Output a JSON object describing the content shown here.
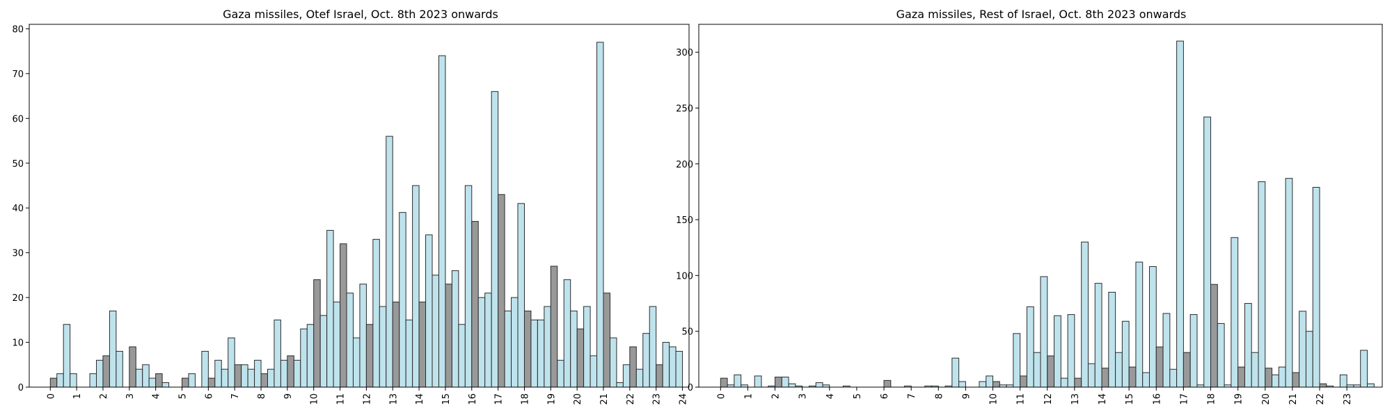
{
  "colors": {
    "light": "#bfe3ec",
    "dark": "#999999",
    "edge": "#2a2a2a"
  },
  "chart_data": [
    {
      "type": "bar",
      "title": "Gaza missiles, Otef Israel, Oct. 8th 2023 onwards",
      "xlabel": "",
      "ylabel": "",
      "x_ticks": [
        "0",
        "1",
        "2",
        "3",
        "4",
        "5",
        "6",
        "7",
        "8",
        "9",
        "10",
        "11",
        "12",
        "13",
        "14",
        "15",
        "16",
        "17",
        "18",
        "19",
        "20",
        "21",
        "22",
        "23",
        "24"
      ],
      "ylim": [
        0,
        81
      ],
      "y_ticks": [
        0,
        10,
        20,
        30,
        40,
        50,
        60,
        70,
        80
      ],
      "xlim": [
        -0.8,
        24.25
      ],
      "bin_width": 0.25,
      "bins": [
        {
          "x": 0.125,
          "v": 2,
          "c": "dark"
        },
        {
          "x": 0.375,
          "v": 3,
          "c": "light"
        },
        {
          "x": 0.625,
          "v": 14,
          "c": "light"
        },
        {
          "x": 0.875,
          "v": 3,
          "c": "light"
        },
        {
          "x": 1.125,
          "v": 0,
          "c": "light"
        },
        {
          "x": 1.375,
          "v": 0,
          "c": "light"
        },
        {
          "x": 1.625,
          "v": 3,
          "c": "light"
        },
        {
          "x": 1.875,
          "v": 6,
          "c": "light"
        },
        {
          "x": 2.125,
          "v": 7,
          "c": "dark"
        },
        {
          "x": 2.375,
          "v": 17,
          "c": "light"
        },
        {
          "x": 2.625,
          "v": 8,
          "c": "light"
        },
        {
          "x": 2.875,
          "v": 0,
          "c": "light"
        },
        {
          "x": 3.125,
          "v": 9,
          "c": "dark"
        },
        {
          "x": 3.375,
          "v": 4,
          "c": "light"
        },
        {
          "x": 3.625,
          "v": 5,
          "c": "light"
        },
        {
          "x": 3.875,
          "v": 2,
          "c": "light"
        },
        {
          "x": 4.125,
          "v": 3,
          "c": "dark"
        },
        {
          "x": 4.375,
          "v": 1,
          "c": "light"
        },
        {
          "x": 4.625,
          "v": 0,
          "c": "light"
        },
        {
          "x": 4.875,
          "v": 0,
          "c": "light"
        },
        {
          "x": 5.125,
          "v": 2,
          "c": "dark"
        },
        {
          "x": 5.375,
          "v": 3,
          "c": "light"
        },
        {
          "x": 5.625,
          "v": 0,
          "c": "light"
        },
        {
          "x": 5.875,
          "v": 8,
          "c": "light"
        },
        {
          "x": 6.125,
          "v": 2,
          "c": "dark"
        },
        {
          "x": 6.375,
          "v": 6,
          "c": "light"
        },
        {
          "x": 6.625,
          "v": 4,
          "c": "light"
        },
        {
          "x": 6.875,
          "v": 11,
          "c": "light"
        },
        {
          "x": 7.125,
          "v": 5,
          "c": "dark"
        },
        {
          "x": 7.375,
          "v": 5,
          "c": "light"
        },
        {
          "x": 7.625,
          "v": 4,
          "c": "light"
        },
        {
          "x": 7.875,
          "v": 6,
          "c": "light"
        },
        {
          "x": 8.125,
          "v": 3,
          "c": "dark"
        },
        {
          "x": 8.375,
          "v": 4,
          "c": "light"
        },
        {
          "x": 8.625,
          "v": 15,
          "c": "light"
        },
        {
          "x": 8.875,
          "v": 6,
          "c": "light"
        },
        {
          "x": 9.125,
          "v": 7,
          "c": "dark"
        },
        {
          "x": 9.375,
          "v": 6,
          "c": "light"
        },
        {
          "x": 9.625,
          "v": 13,
          "c": "light"
        },
        {
          "x": 9.875,
          "v": 14,
          "c": "light"
        },
        {
          "x": 10.125,
          "v": 24,
          "c": "dark"
        },
        {
          "x": 10.375,
          "v": 16,
          "c": "light"
        },
        {
          "x": 10.625,
          "v": 35,
          "c": "light"
        },
        {
          "x": 10.875,
          "v": 19,
          "c": "light"
        },
        {
          "x": 11.125,
          "v": 32,
          "c": "dark"
        },
        {
          "x": 11.375,
          "v": 21,
          "c": "light"
        },
        {
          "x": 11.625,
          "v": 11,
          "c": "light"
        },
        {
          "x": 11.875,
          "v": 23,
          "c": "light"
        },
        {
          "x": 12.125,
          "v": 14,
          "c": "dark"
        },
        {
          "x": 12.375,
          "v": 33,
          "c": "light"
        },
        {
          "x": 12.625,
          "v": 18,
          "c": "light"
        },
        {
          "x": 12.875,
          "v": 56,
          "c": "light"
        },
        {
          "x": 13.125,
          "v": 19,
          "c": "dark"
        },
        {
          "x": 13.375,
          "v": 39,
          "c": "light"
        },
        {
          "x": 13.625,
          "v": 15,
          "c": "light"
        },
        {
          "x": 13.875,
          "v": 45,
          "c": "light"
        },
        {
          "x": 14.125,
          "v": 19,
          "c": "dark"
        },
        {
          "x": 14.375,
          "v": 34,
          "c": "light"
        },
        {
          "x": 14.625,
          "v": 25,
          "c": "light"
        },
        {
          "x": 14.875,
          "v": 74,
          "c": "light"
        },
        {
          "x": 15.125,
          "v": 23,
          "c": "dark"
        },
        {
          "x": 15.375,
          "v": 26,
          "c": "light"
        },
        {
          "x": 15.625,
          "v": 14,
          "c": "light"
        },
        {
          "x": 15.875,
          "v": 45,
          "c": "light"
        },
        {
          "x": 16.125,
          "v": 37,
          "c": "dark"
        },
        {
          "x": 16.375,
          "v": 20,
          "c": "light"
        },
        {
          "x": 16.625,
          "v": 21,
          "c": "light"
        },
        {
          "x": 16.875,
          "v": 66,
          "c": "light"
        },
        {
          "x": 17.125,
          "v": 43,
          "c": "dark"
        },
        {
          "x": 17.375,
          "v": 17,
          "c": "light"
        },
        {
          "x": 17.625,
          "v": 20,
          "c": "light"
        },
        {
          "x": 17.875,
          "v": 41,
          "c": "light"
        },
        {
          "x": 18.125,
          "v": 17,
          "c": "dark"
        },
        {
          "x": 18.375,
          "v": 15,
          "c": "light"
        },
        {
          "x": 18.625,
          "v": 15,
          "c": "light"
        },
        {
          "x": 18.875,
          "v": 18,
          "c": "light"
        },
        {
          "x": 19.125,
          "v": 27,
          "c": "dark"
        },
        {
          "x": 19.375,
          "v": 6,
          "c": "light"
        },
        {
          "x": 19.625,
          "v": 24,
          "c": "light"
        },
        {
          "x": 19.875,
          "v": 17,
          "c": "light"
        },
        {
          "x": 20.125,
          "v": 13,
          "c": "dark"
        },
        {
          "x": 20.375,
          "v": 18,
          "c": "light"
        },
        {
          "x": 20.625,
          "v": 7,
          "c": "light"
        },
        {
          "x": 20.875,
          "v": 77,
          "c": "light"
        },
        {
          "x": 21.125,
          "v": 21,
          "c": "dark"
        },
        {
          "x": 21.375,
          "v": 11,
          "c": "light"
        },
        {
          "x": 21.625,
          "v": 1,
          "c": "light"
        },
        {
          "x": 21.875,
          "v": 5,
          "c": "light"
        },
        {
          "x": 22.125,
          "v": 9,
          "c": "dark"
        },
        {
          "x": 22.375,
          "v": 4,
          "c": "light"
        },
        {
          "x": 22.625,
          "v": 12,
          "c": "light"
        },
        {
          "x": 22.875,
          "v": 18,
          "c": "light"
        },
        {
          "x": 23.125,
          "v": 5,
          "c": "dark"
        },
        {
          "x": 23.375,
          "v": 10,
          "c": "light"
        },
        {
          "x": 23.625,
          "v": 9,
          "c": "light"
        },
        {
          "x": 23.875,
          "v": 8,
          "c": "light"
        }
      ]
    },
    {
      "type": "bar",
      "title": "Gaza missiles, Rest of Israel, Oct. 8th 2023 onwards",
      "xlabel": "",
      "ylabel": "",
      "x_ticks": [
        "0",
        "1",
        "2",
        "3",
        "4",
        "5",
        "6",
        "7",
        "8",
        "9",
        "10",
        "11",
        "12",
        "13",
        "14",
        "15",
        "16",
        "17",
        "18",
        "19",
        "20",
        "21",
        "22",
        "23"
      ],
      "ylim": [
        0,
        325
      ],
      "y_ticks": [
        0,
        50,
        100,
        150,
        200,
        250,
        300
      ],
      "xlim": [
        -0.8,
        24.3
      ],
      "bin_width": 0.25,
      "bins": [
        {
          "x": 0.125,
          "v": 8,
          "c": "dark"
        },
        {
          "x": 0.375,
          "v": 2,
          "c": "light"
        },
        {
          "x": 0.625,
          "v": 11,
          "c": "light"
        },
        {
          "x": 0.875,
          "v": 2,
          "c": "light"
        },
        {
          "x": 1.125,
          "v": 0,
          "c": "light"
        },
        {
          "x": 1.375,
          "v": 10,
          "c": "light"
        },
        {
          "x": 1.625,
          "v": 0,
          "c": "light"
        },
        {
          "x": 1.875,
          "v": 1,
          "c": "light"
        },
        {
          "x": 2.125,
          "v": 9,
          "c": "dark"
        },
        {
          "x": 2.375,
          "v": 9,
          "c": "light"
        },
        {
          "x": 2.625,
          "v": 3,
          "c": "light"
        },
        {
          "x": 2.875,
          "v": 1,
          "c": "light"
        },
        {
          "x": 3.125,
          "v": 0,
          "c": "light"
        },
        {
          "x": 3.375,
          "v": 1,
          "c": "light"
        },
        {
          "x": 3.625,
          "v": 4,
          "c": "light"
        },
        {
          "x": 3.875,
          "v": 2,
          "c": "light"
        },
        {
          "x": 4.125,
          "v": 0,
          "c": "light"
        },
        {
          "x": 4.375,
          "v": 0,
          "c": "light"
        },
        {
          "x": 4.625,
          "v": 1,
          "c": "light"
        },
        {
          "x": 4.875,
          "v": 0,
          "c": "light"
        },
        {
          "x": 5.125,
          "v": 0,
          "c": "light"
        },
        {
          "x": 5.375,
          "v": 0,
          "c": "light"
        },
        {
          "x": 5.625,
          "v": 0,
          "c": "light"
        },
        {
          "x": 5.875,
          "v": 0,
          "c": "light"
        },
        {
          "x": 6.125,
          "v": 6,
          "c": "dark"
        },
        {
          "x": 6.375,
          "v": 0,
          "c": "light"
        },
        {
          "x": 6.625,
          "v": 0,
          "c": "light"
        },
        {
          "x": 6.875,
          "v": 1,
          "c": "light"
        },
        {
          "x": 7.125,
          "v": 0,
          "c": "light"
        },
        {
          "x": 7.375,
          "v": 0,
          "c": "light"
        },
        {
          "x": 7.625,
          "v": 1,
          "c": "light"
        },
        {
          "x": 7.875,
          "v": 1,
          "c": "light"
        },
        {
          "x": 8.125,
          "v": 0,
          "c": "light"
        },
        {
          "x": 8.375,
          "v": 1,
          "c": "light"
        },
        {
          "x": 8.625,
          "v": 26,
          "c": "light"
        },
        {
          "x": 8.875,
          "v": 5,
          "c": "light"
        },
        {
          "x": 9.125,
          "v": 0,
          "c": "light"
        },
        {
          "x": 9.375,
          "v": 0,
          "c": "light"
        },
        {
          "x": 9.625,
          "v": 5,
          "c": "light"
        },
        {
          "x": 9.875,
          "v": 10,
          "c": "light"
        },
        {
          "x": 10.125,
          "v": 5,
          "c": "dark"
        },
        {
          "x": 10.375,
          "v": 2,
          "c": "light"
        },
        {
          "x": 10.625,
          "v": 2,
          "c": "light"
        },
        {
          "x": 10.875,
          "v": 48,
          "c": "light"
        },
        {
          "x": 11.125,
          "v": 10,
          "c": "dark"
        },
        {
          "x": 11.375,
          "v": 72,
          "c": "light"
        },
        {
          "x": 11.625,
          "v": 31,
          "c": "light"
        },
        {
          "x": 11.875,
          "v": 99,
          "c": "light"
        },
        {
          "x": 12.125,
          "v": 28,
          "c": "dark"
        },
        {
          "x": 12.375,
          "v": 64,
          "c": "light"
        },
        {
          "x": 12.625,
          "v": 8,
          "c": "light"
        },
        {
          "x": 12.875,
          "v": 65,
          "c": "light"
        },
        {
          "x": 13.125,
          "v": 8,
          "c": "dark"
        },
        {
          "x": 13.375,
          "v": 130,
          "c": "light"
        },
        {
          "x": 13.625,
          "v": 21,
          "c": "light"
        },
        {
          "x": 13.875,
          "v": 93,
          "c": "light"
        },
        {
          "x": 14.125,
          "v": 17,
          "c": "dark"
        },
        {
          "x": 14.375,
          "v": 85,
          "c": "light"
        },
        {
          "x": 14.625,
          "v": 31,
          "c": "light"
        },
        {
          "x": 14.875,
          "v": 59,
          "c": "light"
        },
        {
          "x": 15.125,
          "v": 18,
          "c": "dark"
        },
        {
          "x": 15.375,
          "v": 112,
          "c": "light"
        },
        {
          "x": 15.625,
          "v": 13,
          "c": "light"
        },
        {
          "x": 15.875,
          "v": 108,
          "c": "light"
        },
        {
          "x": 16.125,
          "v": 36,
          "c": "dark"
        },
        {
          "x": 16.375,
          "v": 66,
          "c": "light"
        },
        {
          "x": 16.625,
          "v": 16,
          "c": "light"
        },
        {
          "x": 16.875,
          "v": 310,
          "c": "light"
        },
        {
          "x": 17.125,
          "v": 31,
          "c": "dark"
        },
        {
          "x": 17.375,
          "v": 65,
          "c": "light"
        },
        {
          "x": 17.625,
          "v": 2,
          "c": "light"
        },
        {
          "x": 17.875,
          "v": 242,
          "c": "light"
        },
        {
          "x": 18.125,
          "v": 92,
          "c": "dark"
        },
        {
          "x": 18.375,
          "v": 57,
          "c": "light"
        },
        {
          "x": 18.625,
          "v": 2,
          "c": "light"
        },
        {
          "x": 18.875,
          "v": 134,
          "c": "light"
        },
        {
          "x": 19.125,
          "v": 18,
          "c": "dark"
        },
        {
          "x": 19.375,
          "v": 75,
          "c": "light"
        },
        {
          "x": 19.625,
          "v": 31,
          "c": "light"
        },
        {
          "x": 19.875,
          "v": 184,
          "c": "light"
        },
        {
          "x": 20.125,
          "v": 17,
          "c": "dark"
        },
        {
          "x": 20.375,
          "v": 11,
          "c": "light"
        },
        {
          "x": 20.625,
          "v": 18,
          "c": "light"
        },
        {
          "x": 20.875,
          "v": 187,
          "c": "light"
        },
        {
          "x": 21.125,
          "v": 13,
          "c": "dark"
        },
        {
          "x": 21.375,
          "v": 68,
          "c": "light"
        },
        {
          "x": 21.625,
          "v": 50,
          "c": "light"
        },
        {
          "x": 21.875,
          "v": 179,
          "c": "light"
        },
        {
          "x": 22.125,
          "v": 3,
          "c": "dark"
        },
        {
          "x": 22.375,
          "v": 1,
          "c": "light"
        },
        {
          "x": 22.625,
          "v": 0,
          "c": "light"
        },
        {
          "x": 22.875,
          "v": 11,
          "c": "light"
        },
        {
          "x": 23.125,
          "v": 2,
          "c": "light"
        },
        {
          "x": 23.375,
          "v": 2,
          "c": "light"
        },
        {
          "x": 23.625,
          "v": 33,
          "c": "light"
        },
        {
          "x": 23.875,
          "v": 3,
          "c": "light"
        }
      ]
    }
  ]
}
